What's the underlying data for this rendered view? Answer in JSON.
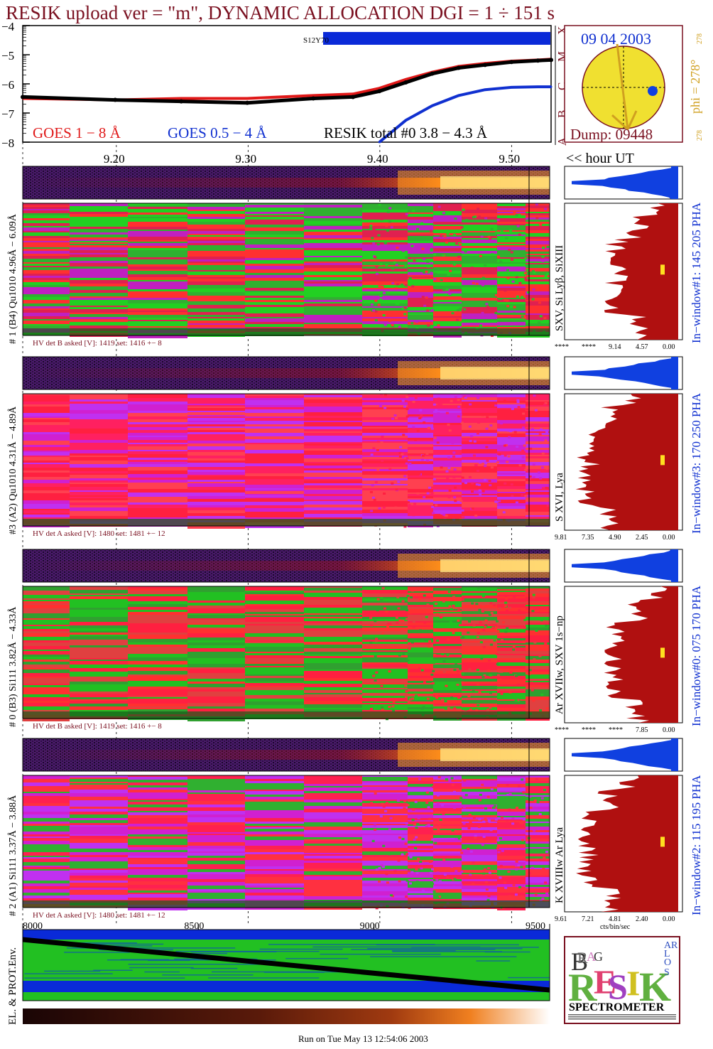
{
  "header": {
    "title": "RESIK upload ver = \"m\", DYNAMIC ALLOCATION  DGI =   1 ÷ 151 s",
    "colors": {
      "title": "#7a1020",
      "goes_long": "#e01818",
      "goes_short": "#1030d0",
      "resik": "#000000",
      "bar": "#0a2ad8",
      "sun": "#f0e030",
      "pha_blue": "#1040e0",
      "pha_red": "#b01010",
      "orange": "#d0a020"
    }
  },
  "lightcurve": {
    "yticks": [
      "−4",
      "−5",
      "−6",
      "−7",
      "−8"
    ],
    "class_labels": [
      "X",
      "M",
      "C",
      "B",
      "A"
    ],
    "bar_label": "S12Y70",
    "legend": {
      "goes_long": "GOES 1 − 8 Å",
      "goes_short": "GOES 0.5 − 4 Å",
      "resik": "RESIK  total #0  3.8 − 4.3 Å"
    }
  },
  "time_axis": {
    "ticks": [
      "9.20",
      "9.30",
      "9.40",
      "9.50"
    ],
    "unit_label": "<< hour UT"
  },
  "sun": {
    "date": "09 04 2003",
    "dump": "Dump: 09448",
    "phi": "phi = 278°",
    "phi_top": "278",
    "phi_bottom": "278"
  },
  "panels": [
    {
      "label": "# 1 (B4) Qu1010 4.96Å − 6.09Å",
      "lines": "SXV, Si Lyβ, SiXIII",
      "hv": "HV det B asked [V]:  1419 set:  1416  +−   8",
      "window": "In−window#1:  145 205 PHA",
      "xticks": [
        "****",
        "****",
        "9.14",
        "4.57",
        "0.00"
      ]
    },
    {
      "label": "#3 (A2) Qu1010  4.31Å − 4.89Å",
      "lines": "S XVI, Lya",
      "hv": "HV det A asked [V]:  1480 set:  1481  +−   12",
      "window": "In−window#3:  170 250 PHA",
      "xticks": [
        "9.81",
        "7.35",
        "4.90",
        "2.45",
        "0.00"
      ]
    },
    {
      "label": "# 0 (B3) Si111  3.82Å − 4.33Å",
      "lines": "Ar XVIIw, SXV 1s−np",
      "hv": "HV det B asked [V]:  1419 set:  1416  +−   8",
      "window": "In−window#0:  075 170 PHA",
      "xticks": [
        "****",
        "****",
        "****",
        "7.85",
        "0.00"
      ]
    },
    {
      "label": "# 2 (A1) Si111  3.37Å − 3.88Å",
      "lines": "K XVIIIw  Ar Lya",
      "hv": "HV det A asked [V]:  1480 set:  1481  +−   12",
      "window": "In−window#2:  115 195 PHA",
      "xticks": [
        "9.61",
        "7.21",
        "4.81",
        "2.40",
        "0.00"
      ],
      "xunit": "cts/bin/sec"
    }
  ],
  "env": {
    "label": "EL. & PROT.Env.",
    "xticks": [
      "8000",
      "8500",
      "9000",
      "9500"
    ]
  },
  "logo": {
    "letters": [
      "B",
      "R",
      "A",
      "G",
      "R",
      "E",
      "S",
      "I",
      "K",
      "S",
      "O",
      "L",
      "A",
      "R"
    ],
    "caption": "SPECTROMETER"
  },
  "footer": "Run on Tue May 13 12:54:06 2003",
  "chart_data": {
    "type": "line",
    "x_axis": "hour UT",
    "xlim": [
      9.13,
      9.53
    ],
    "ylim": [
      -8,
      -4
    ],
    "yscale": "log10 flux",
    "series": [
      {
        "name": "GOES 1 − 8 Å",
        "color": "#e01818",
        "x": [
          9.13,
          9.2,
          9.25,
          9.3,
          9.35,
          9.38,
          9.4,
          9.42,
          9.44,
          9.46,
          9.48,
          9.5,
          9.52,
          9.53
        ],
        "y": [
          -6.5,
          -6.55,
          -6.5,
          -6.5,
          -6.4,
          -6.35,
          -6.15,
          -5.85,
          -5.6,
          -5.4,
          -5.3,
          -5.22,
          -5.18,
          -5.15
        ]
      },
      {
        "name": "GOES 0.5 − 4 Å",
        "color": "#1030d0",
        "x": [
          9.4,
          9.42,
          9.44,
          9.46,
          9.48,
          9.5,
          9.52,
          9.53
        ],
        "y": [
          -8.0,
          -7.25,
          -6.75,
          -6.4,
          -6.2,
          -6.12,
          -6.1,
          -6.1
        ]
      },
      {
        "name": "RESIK  total #0  3.8 − 4.3 Å",
        "color": "#000000",
        "x": [
          9.13,
          9.2,
          9.25,
          9.3,
          9.35,
          9.38,
          9.4,
          9.42,
          9.44,
          9.46,
          9.48,
          9.5,
          9.52,
          9.53
        ],
        "y": [
          -6.45,
          -6.55,
          -6.6,
          -6.65,
          -6.5,
          -6.45,
          -6.25,
          -5.95,
          -5.65,
          -5.45,
          -5.35,
          -5.25,
          -5.2,
          -5.18
        ]
      }
    ]
  }
}
